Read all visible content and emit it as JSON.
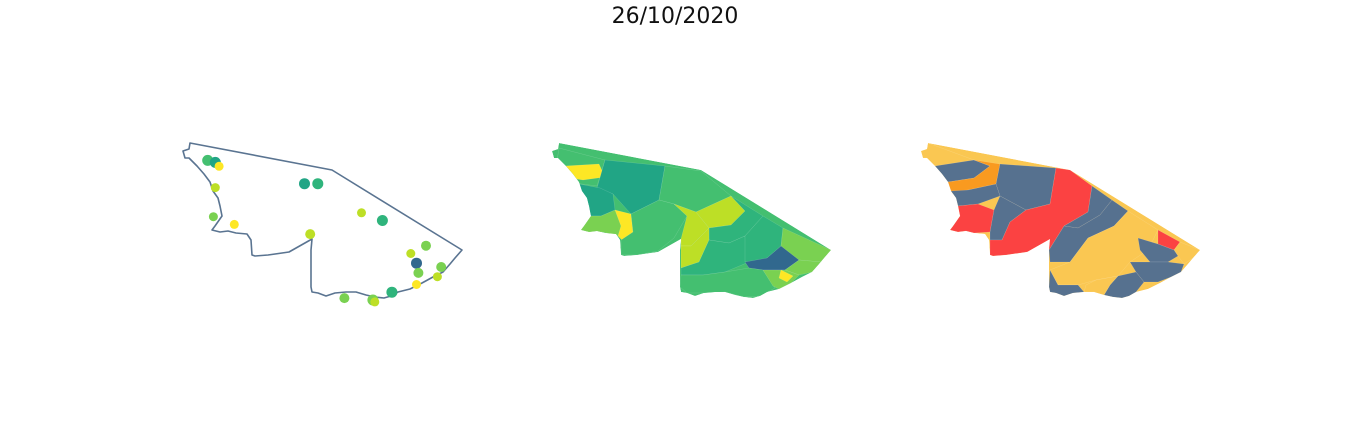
{
  "title": "26/10/2020",
  "palette": {
    "outline": "#5a7491",
    "viridis_dark": "#31688e",
    "viridis_teal": "#21a585",
    "viridis_green": "#2fb47c",
    "viridis_mid": "#44bf70",
    "viridis_light": "#7ad151",
    "viridis_lime": "#bddf26",
    "viridis_yellow": "#fde725",
    "risk_red": "#fb4242",
    "risk_orange": "#f99a20",
    "risk_yellow": "#fac752",
    "risk_slate": "#56718f"
  },
  "chart_data": [
    {
      "type": "scatter",
      "panel": "points",
      "legend": false,
      "grid": false,
      "points": [
        {
          "lon": -73.35,
          "lat": -7.55,
          "color": "#44bf70",
          "size": 5.5
        },
        {
          "lon": -73.15,
          "lat": -7.6,
          "color": "#21a585",
          "size": 5.5
        },
        {
          "lon": -73.05,
          "lat": -7.7,
          "color": "#fde725",
          "size": 4.5
        },
        {
          "lon": -73.15,
          "lat": -8.25,
          "color": "#bddf26",
          "size": 4.5
        },
        {
          "lon": -73.2,
          "lat": -9.0,
          "color": "#7ad151",
          "size": 4.5
        },
        {
          "lon": -72.65,
          "lat": -9.2,
          "color": "#fde725",
          "size": 4.5
        },
        {
          "lon": -70.8,
          "lat": -8.15,
          "color": "#21a585",
          "size": 5.5
        },
        {
          "lon": -70.45,
          "lat": -8.15,
          "color": "#2fb47c",
          "size": 5.5
        },
        {
          "lon": -69.3,
          "lat": -8.9,
          "color": "#bddf26",
          "size": 4.5
        },
        {
          "lon": -68.75,
          "lat": -9.1,
          "color": "#2fb47c",
          "size": 5.5
        },
        {
          "lon": -70.65,
          "lat": -9.45,
          "color": "#bddf26",
          "size": 5
        },
        {
          "lon": -68.0,
          "lat": -9.95,
          "color": "#bddf26",
          "size": 4.5
        },
        {
          "lon": -67.6,
          "lat": -9.75,
          "color": "#7ad151",
          "size": 5
        },
        {
          "lon": -67.85,
          "lat": -10.2,
          "color": "#31688e",
          "size": 5.5
        },
        {
          "lon": -67.8,
          "lat": -10.45,
          "color": "#7ad151",
          "size": 5
        },
        {
          "lon": -67.2,
          "lat": -10.3,
          "color": "#7ad151",
          "size": 5
        },
        {
          "lon": -67.3,
          "lat": -10.55,
          "color": "#bddf26",
          "size": 4.5
        },
        {
          "lon": -67.85,
          "lat": -10.75,
          "color": "#fde725",
          "size": 4.5
        },
        {
          "lon": -68.5,
          "lat": -10.95,
          "color": "#2fb47c",
          "size": 5.5
        },
        {
          "lon": -69.75,
          "lat": -11.1,
          "color": "#7ad151",
          "size": 5
        },
        {
          "lon": -69.0,
          "lat": -11.15,
          "color": "#7ad151",
          "size": 5.5
        },
        {
          "lon": -68.95,
          "lat": -11.2,
          "color": "#bddf26",
          "size": 4.5
        }
      ]
    },
    {
      "type": "heatmap",
      "panel": "choropleth-viridis",
      "legend": false,
      "grid": false
    },
    {
      "type": "heatmap",
      "panel": "choropleth-risk",
      "legend": false,
      "grid": false
    }
  ]
}
